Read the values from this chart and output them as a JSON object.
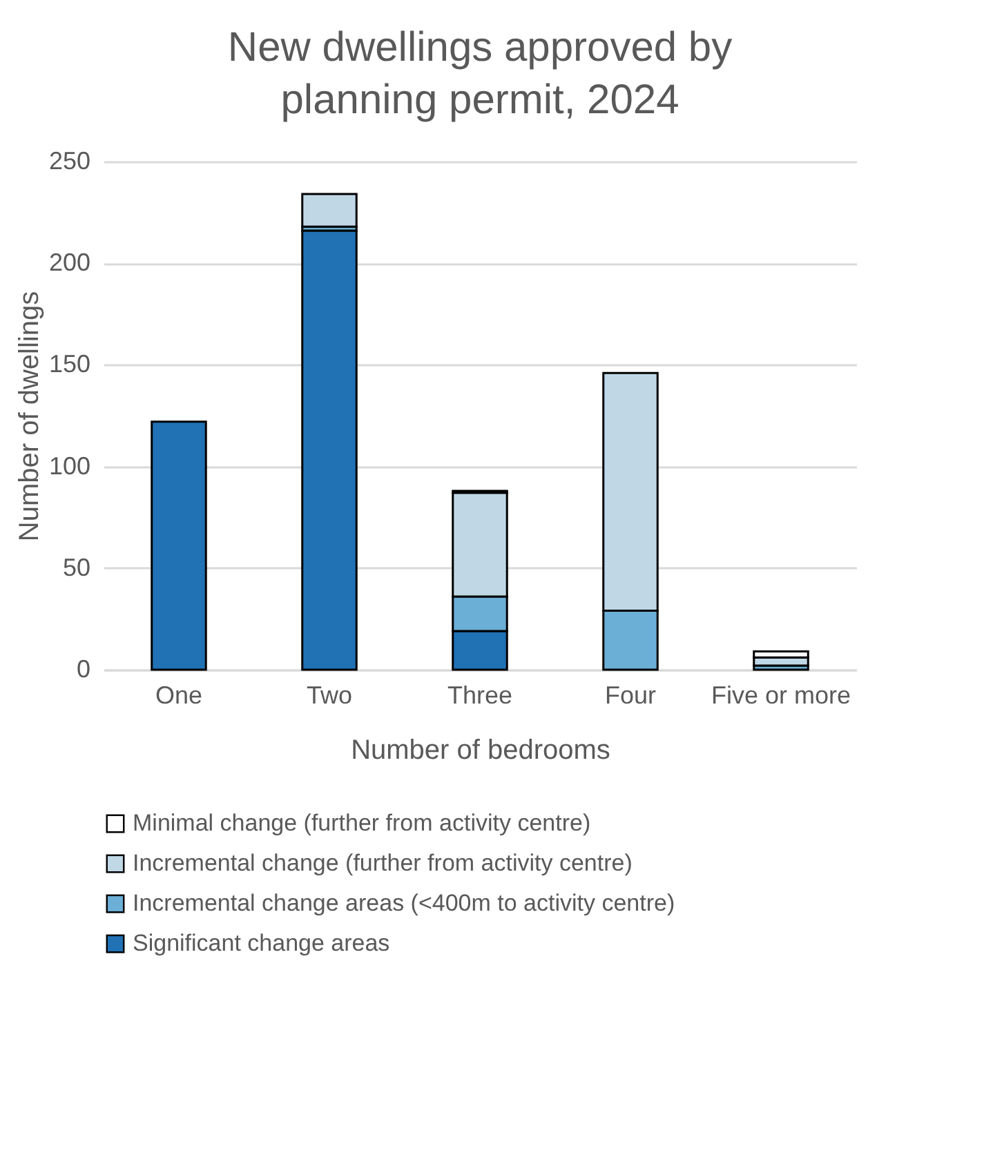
{
  "chart_data": {
    "type": "bar",
    "title": "New dwellings approved by planning permit, 2024",
    "xlabel": "Number of bedrooms",
    "ylabel": "Number of dwellings",
    "categories": [
      "One",
      "Two",
      "Three",
      "Four",
      "Five or more"
    ],
    "stacked": true,
    "series": [
      {
        "name": "Significant change areas",
        "color": "#2171b5",
        "values": [
          122,
          216,
          19,
          0,
          0
        ]
      },
      {
        "name": "Incremental change areas (<400m to activity centre)",
        "color": "#6baed6",
        "values": [
          0,
          2,
          17,
          29,
          2
        ]
      },
      {
        "name": "Incremental change (further from activity centre)",
        "color": "#c0d7e6",
        "values": [
          0,
          16,
          51,
          117,
          4
        ]
      },
      {
        "name": "Minimal change (further from activity centre)",
        "color": "#ffffff",
        "values": [
          0,
          0,
          1,
          0,
          3
        ]
      }
    ],
    "ylim": [
      0,
      250
    ],
    "yticks": [
      0,
      50,
      100,
      150,
      200,
      250
    ],
    "grid": "y",
    "legend": "bottom"
  }
}
